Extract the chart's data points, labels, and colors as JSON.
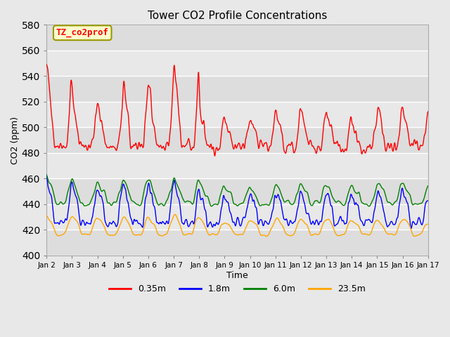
{
  "title": "Tower CO2 Profile Concentrations",
  "xlabel": "Time",
  "ylabel": "CO2 (ppm)",
  "ylim": [
    400,
    580
  ],
  "legend_labels": [
    "0.35m",
    "1.8m",
    "6.0m",
    "23.5m"
  ],
  "line_colors": [
    "red",
    "blue",
    "green",
    "orange"
  ],
  "annotation_text": "TZ_co2prof",
  "annotation_color": "red",
  "annotation_bg": "#ffffcc",
  "annotation_border": "#999900",
  "bg_color": "#e8e8e8",
  "x_tick_labels": [
    "Jan 2",
    "Jan 3",
    "Jan 4",
    "Jan 5",
    "Jan 6",
    "Jan 7",
    "Jan 8",
    "Jan 9",
    "Jan 10",
    "Jan 11",
    "Jan 12",
    "Jan 13",
    "Jan 14",
    "Jan 15",
    "Jan 16",
    "Jan 17"
  ],
  "days": 15,
  "points_per_day": 72
}
